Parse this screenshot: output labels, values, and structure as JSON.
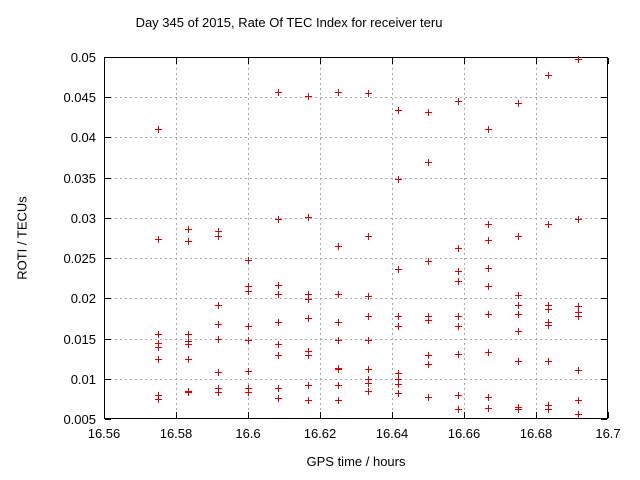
{
  "chart_data": {
    "type": "scatter",
    "title": "Day 345 of 2015, Rate Of TEC Index for receiver teru",
    "xlabel": "GPS time / hours",
    "ylabel": "ROTI / TECUs",
    "xlim": [
      16.56,
      16.7
    ],
    "ylim": [
      0.005,
      0.05
    ],
    "xticks": [
      16.56,
      16.58,
      16.6,
      16.62,
      16.64,
      16.66,
      16.68,
      16.7
    ],
    "xtick_labels": [
      "16.56",
      "16.58",
      "16.6",
      "16.62",
      "16.64",
      "16.66",
      "16.68",
      "16.7"
    ],
    "yticks": [
      0.005,
      0.01,
      0.015,
      0.02,
      0.025,
      0.03,
      0.035,
      0.04,
      0.045,
      0.05
    ],
    "ytick_labels": [
      "0.005",
      "0.01",
      "0.015",
      "0.02",
      "0.025",
      "0.03",
      "0.035",
      "0.04",
      "0.045",
      "0.05"
    ],
    "grid": true,
    "legend": "none",
    "marker": "plus",
    "marker_color": "#e00000",
    "grid_color": "#a8a8a8",
    "border_color": "#000000",
    "background_color": "#ffffff",
    "points": [
      [
        16.575,
        0.041
      ],
      [
        16.575,
        0.0274
      ],
      [
        16.575,
        0.0156
      ],
      [
        16.575,
        0.0145
      ],
      [
        16.575,
        0.014
      ],
      [
        16.575,
        0.0124
      ],
      [
        16.575,
        0.008
      ],
      [
        16.575,
        0.0075
      ],
      [
        16.5833,
        0.0286
      ],
      [
        16.5833,
        0.0271
      ],
      [
        16.5833,
        0.0156
      ],
      [
        16.5833,
        0.0147
      ],
      [
        16.5833,
        0.0143
      ],
      [
        16.5833,
        0.0125
      ],
      [
        16.5833,
        0.0085
      ],
      [
        16.5833,
        0.0083
      ],
      [
        16.5917,
        0.0284
      ],
      [
        16.5917,
        0.0278
      ],
      [
        16.5917,
        0.0192
      ],
      [
        16.5917,
        0.0168
      ],
      [
        16.5917,
        0.0149
      ],
      [
        16.5917,
        0.0108
      ],
      [
        16.5917,
        0.0088
      ],
      [
        16.5917,
        0.0083
      ],
      [
        16.6,
        0.0248
      ],
      [
        16.6,
        0.0215
      ],
      [
        16.6,
        0.0209
      ],
      [
        16.6,
        0.0166
      ],
      [
        16.6,
        0.0148
      ],
      [
        16.6,
        0.011
      ],
      [
        16.6,
        0.0088
      ],
      [
        16.6,
        0.0083
      ],
      [
        16.6083,
        0.0457
      ],
      [
        16.6083,
        0.0298
      ],
      [
        16.6083,
        0.0216
      ],
      [
        16.6083,
        0.0205
      ],
      [
        16.6083,
        0.017
      ],
      [
        16.6083,
        0.0143
      ],
      [
        16.6083,
        0.013
      ],
      [
        16.6083,
        0.0088
      ],
      [
        16.6083,
        0.0076
      ],
      [
        16.6167,
        0.0452
      ],
      [
        16.6167,
        0.0301
      ],
      [
        16.6167,
        0.0205
      ],
      [
        16.6167,
        0.0199
      ],
      [
        16.6167,
        0.0175
      ],
      [
        16.6167,
        0.0134
      ],
      [
        16.6167,
        0.0129
      ],
      [
        16.6167,
        0.0092
      ],
      [
        16.6167,
        0.0073
      ],
      [
        16.625,
        0.0456
      ],
      [
        16.625,
        0.0265
      ],
      [
        16.625,
        0.0205
      ],
      [
        16.625,
        0.017
      ],
      [
        16.625,
        0.0148
      ],
      [
        16.625,
        0.0113
      ],
      [
        16.625,
        0.0112
      ],
      [
        16.625,
        0.0092
      ],
      [
        16.625,
        0.0074
      ],
      [
        16.6333,
        0.0455
      ],
      [
        16.6333,
        0.0278
      ],
      [
        16.6333,
        0.0203
      ],
      [
        16.6333,
        0.0178
      ],
      [
        16.6333,
        0.0148
      ],
      [
        16.6333,
        0.0112
      ],
      [
        16.6333,
        0.01
      ],
      [
        16.6333,
        0.0095
      ],
      [
        16.6333,
        0.0085
      ],
      [
        16.6417,
        0.0434
      ],
      [
        16.6417,
        0.0348
      ],
      [
        16.6417,
        0.0237
      ],
      [
        16.6417,
        0.0178
      ],
      [
        16.6417,
        0.0165
      ],
      [
        16.6417,
        0.0107
      ],
      [
        16.6417,
        0.01
      ],
      [
        16.6417,
        0.0093
      ],
      [
        16.6417,
        0.0082
      ],
      [
        16.65,
        0.0432
      ],
      [
        16.65,
        0.037
      ],
      [
        16.65,
        0.0247
      ],
      [
        16.65,
        0.0178
      ],
      [
        16.65,
        0.0173
      ],
      [
        16.65,
        0.013
      ],
      [
        16.65,
        0.0118
      ],
      [
        16.65,
        0.0077
      ],
      [
        16.6583,
        0.0445
      ],
      [
        16.6583,
        0.0262
      ],
      [
        16.6583,
        0.0234
      ],
      [
        16.6583,
        0.0221
      ],
      [
        16.6583,
        0.0178
      ],
      [
        16.6583,
        0.0166
      ],
      [
        16.6583,
        0.0131
      ],
      [
        16.6583,
        0.008
      ],
      [
        16.6583,
        0.0062
      ],
      [
        16.6667,
        0.0411
      ],
      [
        16.6667,
        0.0293
      ],
      [
        16.6667,
        0.0272
      ],
      [
        16.6667,
        0.0238
      ],
      [
        16.6667,
        0.0215
      ],
      [
        16.6667,
        0.018
      ],
      [
        16.6667,
        0.0133
      ],
      [
        16.6667,
        0.0077
      ],
      [
        16.6667,
        0.0064
      ],
      [
        16.675,
        0.0443
      ],
      [
        16.675,
        0.0277
      ],
      [
        16.675,
        0.0204
      ],
      [
        16.675,
        0.0192
      ],
      [
        16.675,
        0.018
      ],
      [
        16.675,
        0.0159
      ],
      [
        16.675,
        0.0122
      ],
      [
        16.675,
        0.0065
      ],
      [
        16.675,
        0.0062
      ],
      [
        16.6833,
        0.0478
      ],
      [
        16.6833,
        0.0293
      ],
      [
        16.6833,
        0.0192
      ],
      [
        16.6833,
        0.0187
      ],
      [
        16.6833,
        0.0171
      ],
      [
        16.6833,
        0.0167
      ],
      [
        16.6833,
        0.0122
      ],
      [
        16.6833,
        0.0068
      ],
      [
        16.6833,
        0.0063
      ],
      [
        16.6917,
        0.0497
      ],
      [
        16.6917,
        0.0298
      ],
      [
        16.6917,
        0.019
      ],
      [
        16.6917,
        0.0183
      ],
      [
        16.6917,
        0.0178
      ],
      [
        16.6917,
        0.0111
      ],
      [
        16.6917,
        0.0074
      ],
      [
        16.6917,
        0.0056
      ]
    ]
  }
}
